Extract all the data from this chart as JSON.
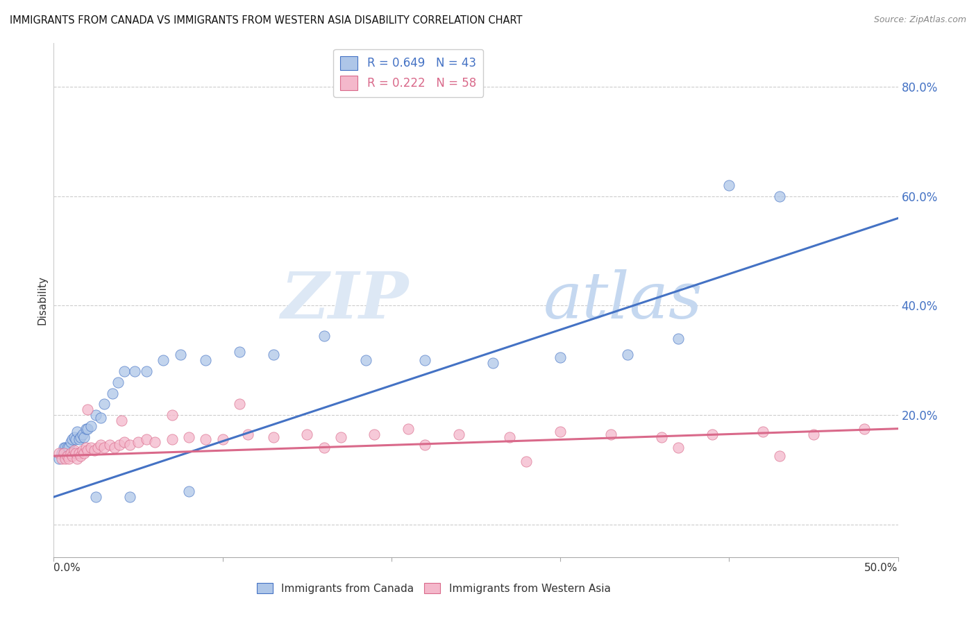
{
  "title": "IMMIGRANTS FROM CANADA VS IMMIGRANTS FROM WESTERN ASIA DISABILITY CORRELATION CHART",
  "source": "Source: ZipAtlas.com",
  "ylabel": "Disability",
  "canada_color": "#aec6e8",
  "canada_line_color": "#4472c4",
  "western_asia_color": "#f4b8cb",
  "western_asia_line_color": "#d9698a",
  "canada_R": 0.649,
  "canada_N": 43,
  "western_asia_R": 0.222,
  "western_asia_N": 58,
  "xlim": [
    0.0,
    0.5
  ],
  "ylim": [
    -0.06,
    0.88
  ],
  "ytick_vals": [
    0.0,
    0.2,
    0.4,
    0.6,
    0.8
  ],
  "ytick_labels": [
    "",
    "20.0%",
    "40.0%",
    "60.0%",
    "80.0%"
  ],
  "canada_line_x0": 0.0,
  "canada_line_y0": 0.05,
  "canada_line_x1": 0.5,
  "canada_line_y1": 0.56,
  "wa_line_x0": 0.0,
  "wa_line_y0": 0.125,
  "wa_line_x1": 0.5,
  "wa_line_y1": 0.175,
  "canada_x": [
    0.003,
    0.005,
    0.006,
    0.007,
    0.008,
    0.009,
    0.01,
    0.011,
    0.012,
    0.013,
    0.014,
    0.015,
    0.016,
    0.017,
    0.018,
    0.019,
    0.02,
    0.022,
    0.025,
    0.028,
    0.03,
    0.035,
    0.038,
    0.042,
    0.048,
    0.055,
    0.065,
    0.075,
    0.09,
    0.11,
    0.13,
    0.16,
    0.185,
    0.22,
    0.26,
    0.3,
    0.34,
    0.37,
    0.4,
    0.43,
    0.025,
    0.045,
    0.08
  ],
  "canada_y": [
    0.12,
    0.13,
    0.14,
    0.14,
    0.14,
    0.14,
    0.15,
    0.155,
    0.16,
    0.155,
    0.17,
    0.155,
    0.16,
    0.165,
    0.16,
    0.175,
    0.175,
    0.18,
    0.2,
    0.195,
    0.22,
    0.24,
    0.26,
    0.28,
    0.28,
    0.28,
    0.3,
    0.31,
    0.3,
    0.315,
    0.31,
    0.345,
    0.3,
    0.3,
    0.295,
    0.305,
    0.31,
    0.34,
    0.62,
    0.6,
    0.05,
    0.05,
    0.06
  ],
  "wa_x": [
    0.003,
    0.005,
    0.006,
    0.007,
    0.008,
    0.009,
    0.01,
    0.011,
    0.012,
    0.013,
    0.014,
    0.015,
    0.016,
    0.017,
    0.018,
    0.019,
    0.02,
    0.022,
    0.024,
    0.026,
    0.028,
    0.03,
    0.033,
    0.036,
    0.039,
    0.042,
    0.045,
    0.05,
    0.055,
    0.06,
    0.07,
    0.08,
    0.09,
    0.1,
    0.115,
    0.13,
    0.15,
    0.17,
    0.19,
    0.21,
    0.24,
    0.27,
    0.3,
    0.33,
    0.36,
    0.39,
    0.42,
    0.45,
    0.48,
    0.02,
    0.04,
    0.07,
    0.11,
    0.16,
    0.22,
    0.28,
    0.37,
    0.43
  ],
  "wa_y": [
    0.13,
    0.12,
    0.13,
    0.12,
    0.125,
    0.12,
    0.13,
    0.125,
    0.135,
    0.13,
    0.12,
    0.13,
    0.125,
    0.135,
    0.13,
    0.14,
    0.135,
    0.14,
    0.135,
    0.14,
    0.145,
    0.14,
    0.145,
    0.14,
    0.145,
    0.15,
    0.145,
    0.15,
    0.155,
    0.15,
    0.155,
    0.16,
    0.155,
    0.155,
    0.165,
    0.16,
    0.165,
    0.16,
    0.165,
    0.175,
    0.165,
    0.16,
    0.17,
    0.165,
    0.16,
    0.165,
    0.17,
    0.165,
    0.175,
    0.21,
    0.19,
    0.2,
    0.22,
    0.14,
    0.145,
    0.115,
    0.14,
    0.125
  ]
}
